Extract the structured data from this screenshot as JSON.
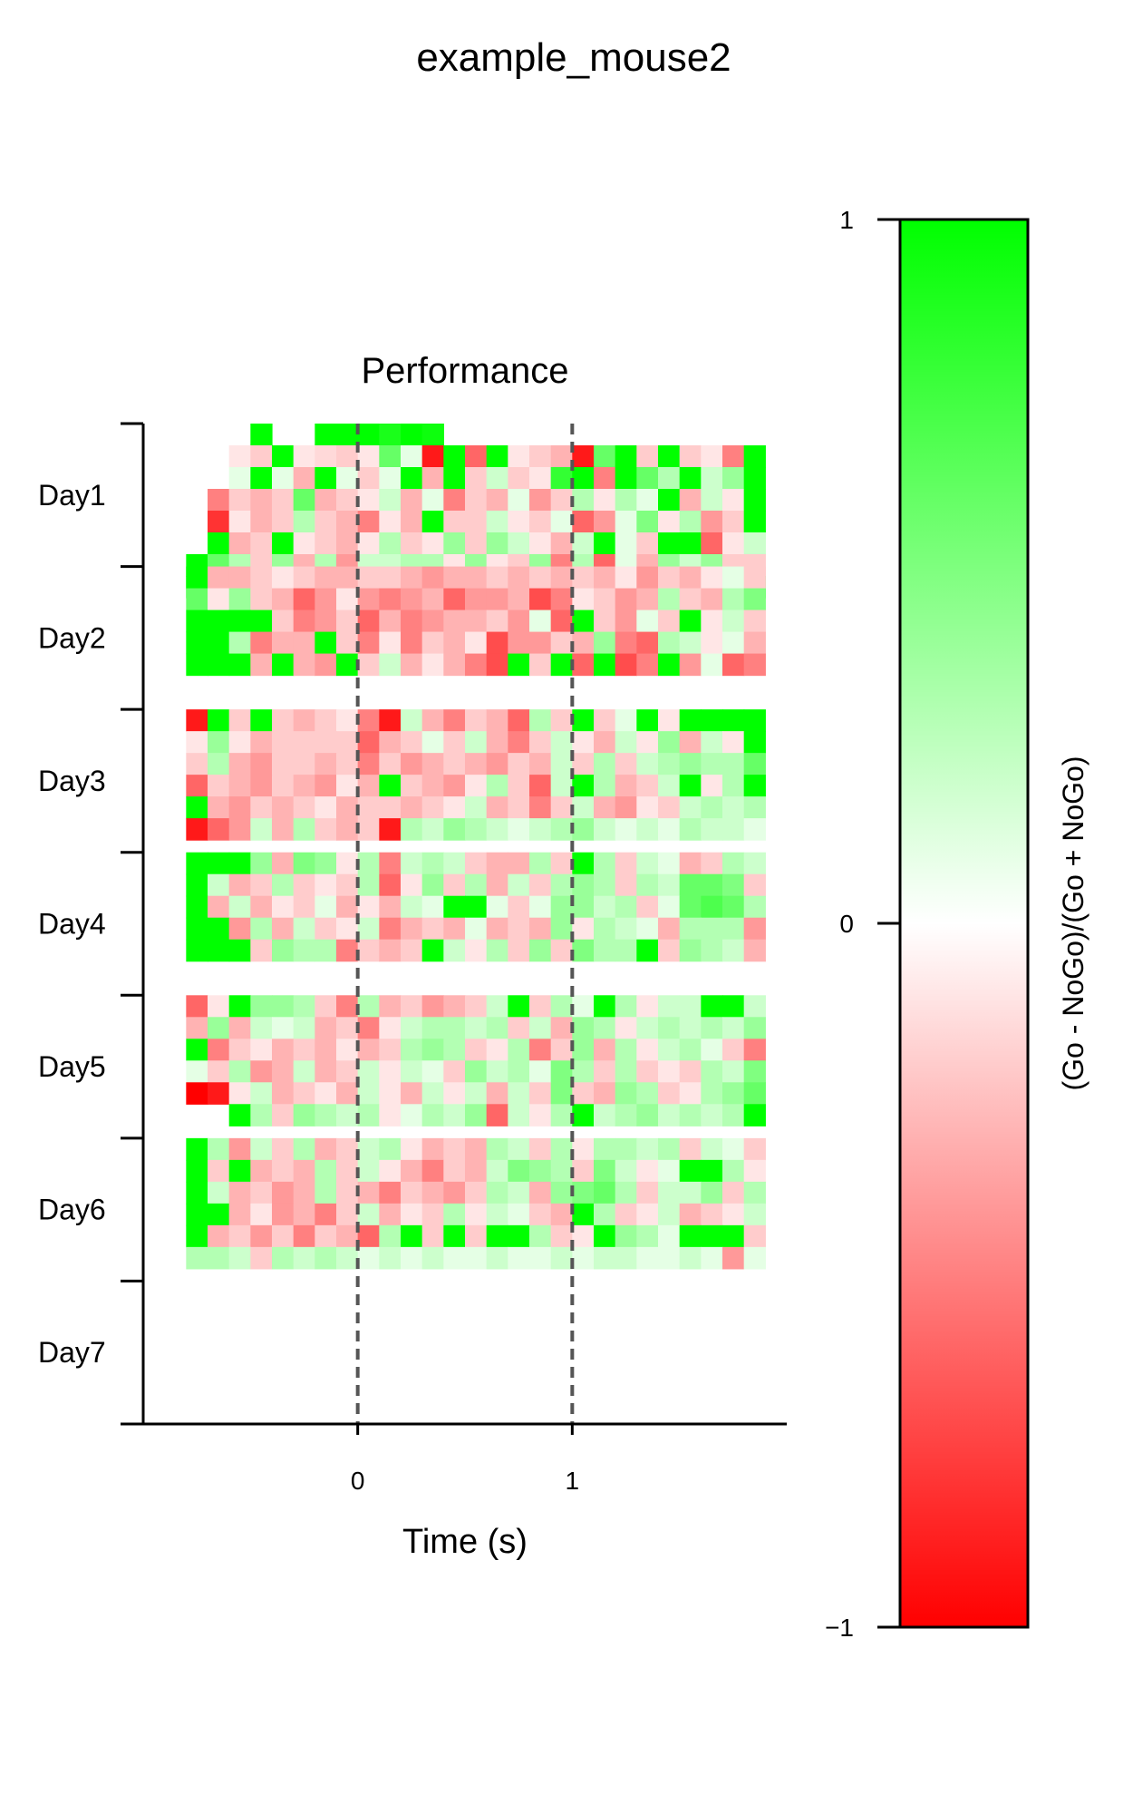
{
  "figure": {
    "suptitle": "example_mouse2"
  },
  "chart_data": {
    "type": "heatmap",
    "title": "Performance",
    "xlabel": "Time (s)",
    "ylabel": "",
    "x_range": [
      -1.0,
      2.0
    ],
    "x_ticks": [
      0,
      1
    ],
    "x_tick_labels": [
      "0",
      "1"
    ],
    "reference_lines_x": [
      0,
      1
    ],
    "y_categories": [
      "Day1",
      "Day2",
      "Day3",
      "Day4",
      "Day5",
      "Day6",
      "Day7"
    ],
    "bins_per_row": 27,
    "first_bin_start": -0.8,
    "bin_width_s": 0.1,
    "value_range": [
      -1,
      1
    ],
    "grid": false,
    "colormap": {
      "low": "#ff0000",
      "mid": "#ffffff",
      "high": "#00ff00"
    },
    "colorbar": {
      "label": "(Go - NoGo)/(Go + NoGo)",
      "ticks": [
        -1,
        0,
        1
      ],
      "tick_labels": [
        "−1",
        "0",
        "1"
      ]
    },
    "days": [
      {
        "name": "Day1",
        "rows": [
          [
            null,
            null,
            null,
            1,
            null,
            null,
            1,
            1,
            1,
            0.9,
            1,
            0.95,
            null,
            null,
            null,
            null,
            null,
            null,
            null,
            null,
            null,
            null,
            null,
            null,
            null,
            null,
            null
          ],
          [
            null,
            null,
            -0.1,
            -0.2,
            1,
            -0.1,
            -0.15,
            -0.2,
            -0.1,
            0.6,
            0.1,
            -0.9,
            1,
            -0.6,
            1,
            -0.1,
            -0.2,
            -0.3,
            -0.9,
            0.6,
            1,
            -0.2,
            1,
            -0.2,
            -0.1,
            -0.5,
            1
          ],
          [
            null,
            null,
            0.1,
            1,
            0.1,
            -0.3,
            1,
            0.1,
            -0.2,
            0.1,
            1,
            -0.3,
            1,
            -0.2,
            0.2,
            -0.2,
            -0.1,
            0.8,
            1,
            -0.5,
            1,
            0.6,
            0.3,
            1,
            0.2,
            0.4,
            1
          ],
          [
            null,
            -0.5,
            -0.2,
            -0.3,
            -0.2,
            0.6,
            -0.3,
            -0.2,
            -0.1,
            0.2,
            -0.3,
            0.1,
            -0.5,
            -0.2,
            -0.3,
            0.1,
            -0.4,
            -0.2,
            0.3,
            -0.1,
            0.3,
            0.1,
            1,
            -0.3,
            0.2,
            -0.1,
            1
          ],
          [
            null,
            -0.8,
            -0.1,
            -0.3,
            -0.2,
            0.3,
            -0.2,
            -0.3,
            -0.5,
            -0.1,
            -0.3,
            1,
            -0.2,
            -0.2,
            0.2,
            -0.1,
            -0.2,
            0.1,
            -0.6,
            -0.4,
            0.1,
            0.5,
            -0.1,
            0.3,
            -0.4,
            -0.2,
            1
          ],
          [
            null,
            1,
            -0.3,
            -0.2,
            1,
            -0.1,
            -0.2,
            -0.3,
            -0.1,
            0.3,
            -0.2,
            -0.1,
            0.4,
            -0.2,
            0.4,
            0.2,
            -0.1,
            -0.3,
            0.2,
            1,
            0.1,
            -0.2,
            1,
            1,
            -0.6,
            -0.1,
            0.2
          ],
          [
            1,
            0.6,
            0.3,
            -0.2,
            0.4,
            -0.3,
            0.3,
            -0.4,
            0.2,
            0.2,
            0.3,
            0.3,
            -0.1,
            0.4,
            -0.1,
            -0.2,
            0.4,
            -0.5,
            0.3,
            -0.6,
            0.1,
            -0.3,
            0.4,
            0.2,
            0.4,
            -0.2,
            -0.2
          ],
          [
            1,
            -0.1,
            1,
            1,
            -0.2,
            -0.4,
            0.1,
            -0.2,
            0.1,
            -0.3,
            0.2,
            0.3,
            0.2,
            0.3,
            -0.1,
            0.2,
            -0.4,
            0.3,
            -0.2,
            0.2,
            1,
            1,
            -0.5,
            1,
            0.1,
            -0.1,
            1
          ]
        ]
      },
      {
        "name": "Day2",
        "rows": [
          [
            1,
            -0.3,
            -0.3,
            -0.2,
            -0.1,
            -0.2,
            -0.3,
            -0.3,
            -0.2,
            -0.2,
            -0.3,
            -0.4,
            -0.3,
            -0.3,
            -0.2,
            -0.3,
            -0.2,
            -0.3,
            -0.2,
            -0.3,
            -0.1,
            -0.4,
            -0.2,
            -0.3,
            -0.1,
            0.1,
            -0.2
          ],
          [
            0.6,
            -0.1,
            0.4,
            -0.2,
            -0.3,
            -0.6,
            -0.4,
            -0.1,
            -0.4,
            -0.5,
            -0.4,
            -0.3,
            -0.6,
            -0.4,
            -0.4,
            -0.3,
            -0.7,
            -0.5,
            -0.1,
            -0.2,
            -0.4,
            -0.3,
            0.3,
            -0.2,
            -0.3,
            0.3,
            0.5
          ],
          [
            1,
            1,
            1,
            1,
            -0.2,
            -0.5,
            -0.4,
            -0.2,
            -0.6,
            -0.3,
            -0.5,
            -0.4,
            -0.3,
            -0.3,
            -0.2,
            -0.4,
            0.1,
            -0.6,
            1,
            -0.2,
            -0.4,
            0.1,
            -0.2,
            1,
            -0.1,
            0.2,
            -0.2
          ],
          [
            1,
            1,
            0.3,
            -0.5,
            -0.3,
            -0.3,
            1,
            -0.2,
            -0.5,
            -0.1,
            -0.5,
            -0.2,
            -0.3,
            -0.1,
            -0.7,
            -0.4,
            -0.4,
            -0.2,
            -0.3,
            0.4,
            -0.5,
            -0.6,
            0.3,
            0.2,
            -0.1,
            0.1,
            -0.3
          ],
          [
            1,
            1,
            1,
            -0.3,
            1,
            -0.3,
            -0.4,
            1,
            -0.2,
            0.2,
            -0.3,
            -0.1,
            -0.3,
            -0.5,
            -0.7,
            1,
            -0.2,
            1,
            -0.6,
            1,
            -0.7,
            -0.5,
            1,
            -0.4,
            0.1,
            -0.6,
            -0.5
          ]
        ]
      },
      {
        "name": "Day3",
        "rows": [
          [
            -0.9,
            1,
            -0.2,
            1,
            -0.2,
            -0.3,
            -0.2,
            -0.1,
            -0.5,
            -0.9,
            0.2,
            -0.3,
            -0.5,
            -0.2,
            -0.3,
            -0.6,
            0.3,
            -0.2,
            1,
            -0.2,
            0.1,
            1,
            -0.1,
            1,
            1,
            1,
            1
          ],
          [
            -0.1,
            0.4,
            -0.1,
            -0.3,
            -0.2,
            -0.2,
            -0.2,
            -0.2,
            -0.6,
            -0.3,
            -0.2,
            0.1,
            -0.2,
            0.2,
            -0.3,
            -0.5,
            -0.2,
            0.2,
            -0.1,
            -0.3,
            0.2,
            -0.1,
            0.4,
            -0.3,
            0.2,
            -0.1,
            1
          ],
          [
            -0.2,
            0.3,
            -0.3,
            -0.4,
            -0.2,
            -0.2,
            -0.3,
            -0.2,
            -0.5,
            -0.2,
            -0.4,
            -0.3,
            -0.2,
            -0.3,
            -0.4,
            -0.2,
            -0.3,
            0.2,
            -0.2,
            0.3,
            -0.2,
            0.2,
            0.3,
            0.4,
            0.3,
            0.3,
            0.6
          ],
          [
            -0.6,
            -0.2,
            -0.3,
            -0.4,
            -0.2,
            -0.3,
            -0.4,
            -0.1,
            -0.3,
            1,
            -0.2,
            -0.3,
            -0.4,
            -0.1,
            0.3,
            -0.2,
            -0.6,
            0.2,
            1,
            0.3,
            -0.3,
            -0.2,
            0.2,
            1,
            -0.1,
            0.3,
            1
          ],
          [
            1,
            -0.3,
            -0.4,
            -0.2,
            -0.3,
            -0.2,
            -0.1,
            -0.3,
            -0.2,
            -0.2,
            -0.3,
            -0.2,
            -0.1,
            0.2,
            -0.3,
            -0.2,
            -0.5,
            -0.2,
            0.2,
            -0.3,
            -0.4,
            -0.1,
            -0.2,
            0.2,
            0.3,
            0.2,
            0.3
          ],
          [
            -0.9,
            -0.6,
            -0.4,
            0.2,
            -0.3,
            0.3,
            -0.2,
            -0.3,
            -0.2,
            -0.9,
            0.3,
            0.2,
            0.4,
            0.3,
            0.2,
            0.1,
            0.2,
            0.3,
            0.4,
            0.2,
            0.1,
            0.2,
            0.1,
            0.3,
            0.2,
            0.2,
            0.1
          ]
        ]
      },
      {
        "name": "Day4",
        "rows": [
          [
            1,
            1,
            1,
            0.4,
            -0.3,
            0.5,
            0.4,
            -0.1,
            0.3,
            -0.5,
            0.2,
            0.3,
            0.2,
            -0.2,
            -0.3,
            -0.3,
            0.3,
            -0.2,
            1,
            0.3,
            -0.2,
            0.2,
            0.1,
            -0.3,
            -0.2,
            0.3,
            0.2
          ],
          [
            1,
            0.2,
            -0.3,
            -0.2,
            0.3,
            -0.2,
            -0.1,
            -0.2,
            0.3,
            -0.6,
            -0.1,
            0.4,
            -0.2,
            0.3,
            -0.3,
            0.2,
            -0.2,
            0.3,
            0.4,
            0.3,
            -0.2,
            0.3,
            0.2,
            0.6,
            0.6,
            0.5,
            -0.2
          ],
          [
            1,
            -0.3,
            0.2,
            -0.3,
            -0.1,
            -0.2,
            0.1,
            -0.3,
            -0.1,
            -0.3,
            0.2,
            0.1,
            1,
            1,
            0.1,
            -0.2,
            0.1,
            0.4,
            0.4,
            0.2,
            0.3,
            -0.2,
            0.1,
            0.6,
            0.7,
            0.6,
            0.3
          ],
          [
            1,
            1,
            -0.4,
            0.3,
            -0.3,
            0.2,
            -0.2,
            -0.1,
            0.2,
            -0.5,
            -0.3,
            -0.2,
            -0.3,
            0.1,
            -0.3,
            -0.2,
            -0.3,
            0.4,
            -0.1,
            0.3,
            0.2,
            0.1,
            -0.3,
            0.3,
            0.3,
            0.3,
            -0.4
          ],
          [
            1,
            1,
            1,
            -0.2,
            0.4,
            0.3,
            0.3,
            -0.5,
            -0.2,
            -0.3,
            -0.2,
            1,
            0.2,
            -0.1,
            0.3,
            -0.2,
            0.4,
            -0.2,
            0.5,
            0.3,
            0.3,
            1,
            -0.2,
            0.4,
            0.3,
            0.2,
            -0.3
          ]
        ]
      },
      {
        "name": "Day5",
        "rows": [
          [
            -0.6,
            -0.1,
            1,
            0.4,
            0.4,
            0.3,
            -0.2,
            -0.5,
            0.3,
            -0.3,
            -0.2,
            -0.4,
            -0.3,
            -0.2,
            0.2,
            1,
            -0.2,
            0.3,
            0.1,
            1,
            0.3,
            -0.1,
            0.2,
            0.2,
            1,
            1,
            0.2
          ],
          [
            -0.3,
            0.4,
            -0.3,
            0.2,
            0.1,
            0.2,
            -0.3,
            -0.2,
            -0.5,
            -0.1,
            0.2,
            0.3,
            0.3,
            0.2,
            0.3,
            -0.2,
            0.2,
            -0.3,
            0.4,
            0.3,
            -0.1,
            0.2,
            0.3,
            0.2,
            0.3,
            0.2,
            0.4
          ],
          [
            1,
            -0.5,
            -0.2,
            -0.1,
            -0.3,
            -0.2,
            -0.3,
            -0.1,
            -0.3,
            -0.2,
            0.3,
            0.4,
            0.3,
            -0.2,
            -0.1,
            0.3,
            -0.5,
            -0.2,
            0.4,
            -0.3,
            0.3,
            -0.1,
            0.2,
            0.3,
            0.1,
            -0.2,
            -0.5
          ],
          [
            0.1,
            -0.2,
            0.3,
            -0.4,
            -0.3,
            0.2,
            -0.3,
            -0.2,
            0.2,
            -0.1,
            0.2,
            0.1,
            -0.2,
            0.4,
            0.2,
            0.3,
            0.1,
            0.5,
            0.3,
            -0.2,
            0.3,
            -0.2,
            -0.1,
            -0.2,
            0.3,
            0.2,
            0.5
          ],
          [
            -1,
            -0.9,
            -0.1,
            0.2,
            -0.3,
            -0.2,
            -0.1,
            -0.3,
            0.2,
            -0.1,
            -0.3,
            0.2,
            -0.1,
            0.2,
            -0.3,
            0.2,
            -0.2,
            0.5,
            -0.2,
            -0.3,
            0.4,
            0.3,
            -0.2,
            -0.1,
            0.3,
            0.4,
            0.6
          ],
          [
            null,
            null,
            1,
            0.3,
            -0.2,
            0.4,
            0.3,
            0.2,
            0.3,
            -0.1,
            0.1,
            0.3,
            0.2,
            0.4,
            -0.6,
            0.2,
            -0.1,
            0.3,
            1,
            0.2,
            0.3,
            0.4,
            0.2,
            0.3,
            0.2,
            0.3,
            1
          ]
        ]
      },
      {
        "name": "Day6",
        "rows": [
          [
            1,
            0.3,
            -0.4,
            0.2,
            -0.2,
            0.3,
            -0.3,
            -0.2,
            0.2,
            0.3,
            -0.1,
            -0.3,
            -0.2,
            -0.3,
            0.3,
            0.2,
            -0.2,
            0.3,
            -0.1,
            0.3,
            0.3,
            0.2,
            0.3,
            -0.2,
            0.2,
            0.1,
            -0.2
          ],
          [
            1,
            -0.2,
            1,
            -0.3,
            -0.2,
            -0.3,
            0.3,
            -0.2,
            0.2,
            -0.1,
            -0.3,
            -0.5,
            -0.2,
            -0.3,
            0.2,
            0.5,
            0.4,
            0.3,
            -0.2,
            0.5,
            0.2,
            -0.1,
            0.1,
            1,
            1,
            0.3,
            -0.1
          ],
          [
            1,
            0.2,
            -0.3,
            -0.2,
            -0.4,
            -0.3,
            0.3,
            -0.2,
            -0.3,
            -0.5,
            -0.2,
            -0.3,
            -0.4,
            -0.2,
            0.3,
            0.2,
            -0.3,
            0.4,
            0.5,
            0.6,
            0.3,
            -0.2,
            0.2,
            0.2,
            0.4,
            -0.2,
            0.3
          ],
          [
            1,
            1,
            -0.3,
            -0.1,
            -0.4,
            -0.3,
            -0.5,
            -0.2,
            0.2,
            -0.3,
            -0.1,
            -0.2,
            0.3,
            -0.1,
            0.2,
            0.1,
            -0.2,
            -0.3,
            1,
            0.3,
            -0.2,
            -0.1,
            0.2,
            -0.3,
            -0.2,
            -0.1,
            0.2
          ],
          [
            1,
            -0.3,
            -0.2,
            -0.4,
            -0.2,
            -0.5,
            -0.2,
            -0.3,
            -0.6,
            0.3,
            1,
            -0.2,
            1,
            -0.2,
            1,
            1,
            0.3,
            -0.2,
            -0.1,
            1,
            0.4,
            0.3,
            0.1,
            1,
            1,
            1,
            -0.2
          ],
          [
            0.3,
            0.3,
            0.2,
            -0.2,
            0.3,
            0.2,
            0.3,
            0.2,
            0.1,
            0.2,
            0.1,
            0.2,
            0.1,
            0.1,
            0.2,
            0.1,
            0.1,
            0.2,
            0.1,
            0.2,
            0.2,
            0.1,
            0.1,
            0.2,
            0.1,
            -0.4,
            0.1
          ]
        ]
      },
      {
        "name": "Day7",
        "rows": []
      }
    ]
  }
}
